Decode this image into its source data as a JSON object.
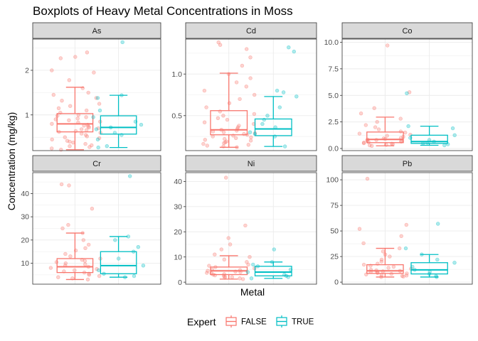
{
  "chart_data": {
    "type": "boxplot",
    "title": "Boxplots of Heavy Metal Concentrations in Moss",
    "xlabel": "Metal",
    "ylabel": "Concentration (mg/kg)",
    "legend": {
      "title": "Expert",
      "placement": "bottom",
      "entries": [
        {
          "label": "FALSE",
          "color": "#F8766D"
        },
        {
          "label": "TRUE",
          "color": "#00BFC4"
        }
      ]
    },
    "grid": true,
    "facets": [
      {
        "name": "As",
        "ylim": [
          0.2,
          2.7
        ],
        "yticks": [
          1,
          2
        ],
        "series": [
          {
            "group": "FALSE",
            "min": 0.22,
            "q1": 0.62,
            "median": 0.8,
            "q3": 1.03,
            "max": 1.62,
            "points": [
              2.4,
              2.3,
              2.27,
              2.0,
              1.95,
              1.78,
              1.6,
              1.5,
              1.45,
              1.38,
              1.32,
              1.25,
              1.2,
              1.15,
              1.1,
              1.05,
              1.0,
              0.98,
              0.95,
              0.92,
              0.9,
              0.88,
              0.85,
              0.83,
              0.8,
              0.78,
              0.76,
              0.74,
              0.72,
              0.7,
              0.68,
              0.66,
              0.64,
              0.62,
              0.6,
              0.58,
              0.55,
              0.52,
              0.5,
              0.48,
              0.45,
              0.42,
              0.4,
              0.38,
              0.35,
              0.32,
              0.3,
              0.28,
              0.25,
              0.22
            ]
          },
          {
            "group": "TRUE",
            "min": 0.27,
            "q1": 0.57,
            "median": 0.72,
            "q3": 0.98,
            "max": 1.44,
            "points": [
              2.63,
              1.44,
              1.38,
              1.1,
              0.95,
              0.85,
              0.78,
              0.72,
              0.68,
              0.6,
              0.55,
              0.45,
              0.3,
              0.27
            ]
          }
        ]
      },
      {
        "name": "Cd",
        "ylim": [
          0.08,
          1.42
        ],
        "yticks": [
          0.5,
          1.0
        ],
        "series": [
          {
            "group": "FALSE",
            "min": 0.12,
            "q1": 0.27,
            "median": 0.33,
            "q3": 0.56,
            "max": 1.01,
            "points": [
              1.38,
              1.35,
              1.3,
              1.2,
              1.1,
              1.0,
              0.95,
              0.9,
              0.85,
              0.8,
              0.75,
              0.7,
              0.65,
              0.6,
              0.55,
              0.52,
              0.5,
              0.47,
              0.45,
              0.42,
              0.4,
              0.38,
              0.36,
              0.34,
              0.33,
              0.32,
              0.31,
              0.3,
              0.29,
              0.28,
              0.27,
              0.26,
              0.25,
              0.24,
              0.23,
              0.22,
              0.21,
              0.2,
              0.19,
              0.18,
              0.17,
              0.16,
              0.15,
              0.14,
              0.13,
              0.12
            ]
          },
          {
            "group": "TRUE",
            "min": 0.13,
            "q1": 0.26,
            "median": 0.34,
            "q3": 0.46,
            "max": 0.73,
            "points": [
              1.32,
              1.27,
              0.8,
              0.78,
              0.73,
              0.6,
              0.5,
              0.45,
              0.4,
              0.36,
              0.3,
              0.28,
              0.25,
              0.13
            ]
          }
        ]
      },
      {
        "name": "Co",
        "ylim": [
          -0.2,
          10.3
        ],
        "yticks": [
          0.0,
          2.5,
          5.0,
          7.5,
          10.0
        ],
        "series": [
          {
            "group": "FALSE",
            "min": 0.25,
            "q1": 0.55,
            "median": 0.85,
            "q3": 1.55,
            "max": 2.95,
            "points": [
              9.7,
              5.3,
              3.8,
              3.3,
              2.8,
              2.5,
              2.2,
              2.0,
              1.8,
              1.6,
              1.5,
              1.4,
              1.3,
              1.2,
              1.1,
              1.0,
              0.95,
              0.9,
              0.85,
              0.8,
              0.75,
              0.7,
              0.65,
              0.6,
              0.55,
              0.5,
              0.45,
              0.4,
              0.35,
              0.3,
              0.25
            ]
          },
          {
            "group": "TRUE",
            "min": 0.3,
            "q1": 0.48,
            "median": 0.65,
            "q3": 1.25,
            "max": 2.1,
            "points": [
              5.2,
              2.1,
              1.9,
              1.25,
              1.0,
              0.8,
              0.65,
              0.55,
              0.48,
              0.4,
              0.3
            ]
          }
        ]
      },
      {
        "name": "Cr",
        "ylim": [
          1.0,
          49.0
        ],
        "yticks": [
          10,
          20,
          30,
          40
        ],
        "series": [
          {
            "group": "FALSE",
            "min": 3.0,
            "q1": 6.0,
            "median": 8.5,
            "q3": 12.0,
            "max": 23.0,
            "points": [
              44.0,
              43.5,
              33.5,
              26.5,
              25.0,
              23.0,
              20.0,
              18.0,
              16.5,
              15.5,
              14.0,
              13.0,
              12.0,
              11.5,
              11.0,
              10.5,
              10.0,
              9.5,
              9.0,
              8.5,
              8.0,
              7.5,
              7.0,
              6.5,
              6.0,
              5.5,
              5.0,
              4.5,
              4.0,
              3.5,
              3.0
            ]
          },
          {
            "group": "TRUE",
            "min": 4.0,
            "q1": 5.5,
            "median": 9.0,
            "q3": 15.0,
            "max": 21.5,
            "points": [
              47.5,
              21.5,
              20.0,
              17.0,
              15.0,
              12.0,
              9.0,
              7.0,
              5.5,
              4.5,
              4.0
            ]
          }
        ]
      },
      {
        "name": "Ni",
        "ylim": [
          -0.8,
          43.5
        ],
        "yticks": [
          0,
          10,
          20,
          30,
          40
        ],
        "series": [
          {
            "group": "FALSE",
            "min": 1.2,
            "q1": 3.0,
            "median": 4.5,
            "q3": 6.0,
            "max": 10.5,
            "points": [
              41.5,
              22.5,
              17.5,
              15.0,
              13.0,
              11.0,
              10.0,
              9.0,
              8.0,
              7.0,
              6.5,
              6.0,
              5.5,
              5.0,
              4.8,
              4.5,
              4.2,
              4.0,
              3.7,
              3.5,
              3.2,
              3.0,
              2.7,
              2.5,
              2.2,
              2.0,
              1.7,
              1.5,
              1.2
            ]
          },
          {
            "group": "TRUE",
            "min": 1.5,
            "q1": 2.5,
            "median": 4.0,
            "q3": 6.3,
            "max": 8.0,
            "points": [
              13.0,
              8.0,
              7.0,
              6.3,
              5.0,
              4.0,
              3.0,
              2.5,
              2.0,
              1.5
            ]
          }
        ]
      },
      {
        "name": "Pb",
        "ylim": [
          -2.0,
          107.0
        ],
        "yticks": [
          0,
          25,
          50,
          75,
          100
        ],
        "series": [
          {
            "group": "FALSE",
            "min": 5.0,
            "q1": 8.5,
            "median": 11.0,
            "q3": 17.0,
            "max": 33.0,
            "points": [
              101.0,
              56.0,
              52.0,
              45.0,
              38.0,
              33.0,
              30.0,
              27.0,
              25.0,
              22.0,
              20.0,
              18.0,
              17.0,
              16.0,
              15.0,
              14.0,
              13.0,
              12.0,
              11.5,
              11.0,
              10.5,
              10.0,
              9.5,
              9.0,
              8.5,
              8.0,
              7.5,
              7.0,
              6.5,
              6.0,
              5.5,
              5.0
            ]
          },
          {
            "group": "TRUE",
            "min": 5.0,
            "q1": 8.0,
            "median": 12.0,
            "q3": 19.0,
            "max": 27.0,
            "points": [
              57.0,
              33.0,
              27.0,
              22.0,
              19.0,
              15.0,
              12.0,
              10.0,
              8.0,
              6.0,
              5.0
            ]
          }
        ]
      }
    ]
  }
}
